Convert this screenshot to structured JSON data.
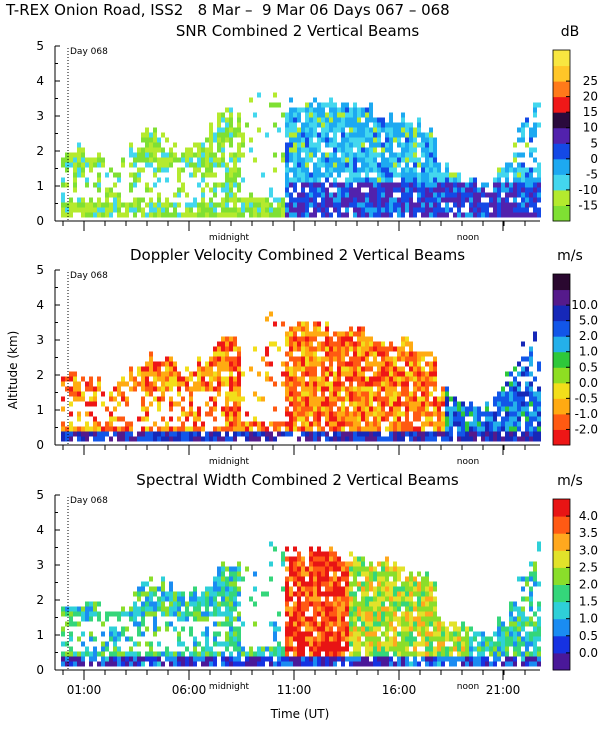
{
  "header": {
    "title": "T-REX Onion Road, ISS2   8 Mar –  9 Mar 06 Days 067 – 068"
  },
  "x_axis": {
    "label": "Time (UT)",
    "tick_labels": [
      "01:00",
      "06:00",
      "11:00",
      "16:00",
      "21:00"
    ],
    "midnight_label": "midnight",
    "noon_label": "noon",
    "day_marker": "Day 068"
  },
  "y_axis": {
    "label": "Altitude (km)",
    "tick_labels": [
      "0",
      "1",
      "2",
      "3",
      "4",
      "5"
    ]
  },
  "chart_data": [
    {
      "type": "heatmap",
      "title": "SNR Combined 2 Vertical Beams",
      "unit": "dB",
      "ylim": [
        0,
        5
      ],
      "ylabel": "Altitude (km)",
      "xlabel": "Time (UT)",
      "colorbar": {
        "labels": [
          "-15",
          "-10",
          "-5",
          "0",
          "5",
          "10",
          "15",
          "20",
          "25"
        ],
        "colors": [
          "#7fe033",
          "#b4ea2e",
          "#43d7ee",
          "#1da9f1",
          "#1449e6",
          "#5222ad",
          "#2a0a3d",
          "#f01818",
          "#ff7a1a",
          "#ffc628",
          "#f8e640"
        ]
      }
    },
    {
      "type": "heatmap",
      "title": "Doppler Velocity Combined 2 Vertical Beams",
      "unit": "m/s",
      "ylim": [
        0,
        5
      ],
      "ylabel": "Altitude (km)",
      "xlabel": "Time (UT)",
      "colorbar": {
        "labels": [
          "-2.0",
          "-1.0",
          "-0.5",
          "0.0",
          "0.5",
          "1.0",
          "2.0",
          "5.0",
          "10.0"
        ],
        "colors": [
          "#ee1616",
          "#ff5a12",
          "#ffaa12",
          "#f2de1a",
          "#8ede22",
          "#2ec83a",
          "#24b0ea",
          "#1256e8",
          "#1628b8",
          "#551a8b",
          "#2a0830"
        ]
      }
    },
    {
      "type": "heatmap",
      "title": "Spectral Width Combined 2 Vertical Beams",
      "unit": "m/s",
      "ylim": [
        0,
        5
      ],
      "ylabel": "Altitude (km)",
      "xlabel": "Time (UT)",
      "colorbar": {
        "labels": [
          "0.0",
          "0.5",
          "1.0",
          "1.5",
          "2.0",
          "2.5",
          "3.0",
          "3.5",
          "4.0"
        ],
        "colors": [
          "#4a1899",
          "#1632e2",
          "#1a8cf2",
          "#2ed0d8",
          "#34d67a",
          "#8ade2a",
          "#e2e22a",
          "#ffa81e",
          "#ff5a14",
          "#e81414"
        ]
      }
    }
  ]
}
